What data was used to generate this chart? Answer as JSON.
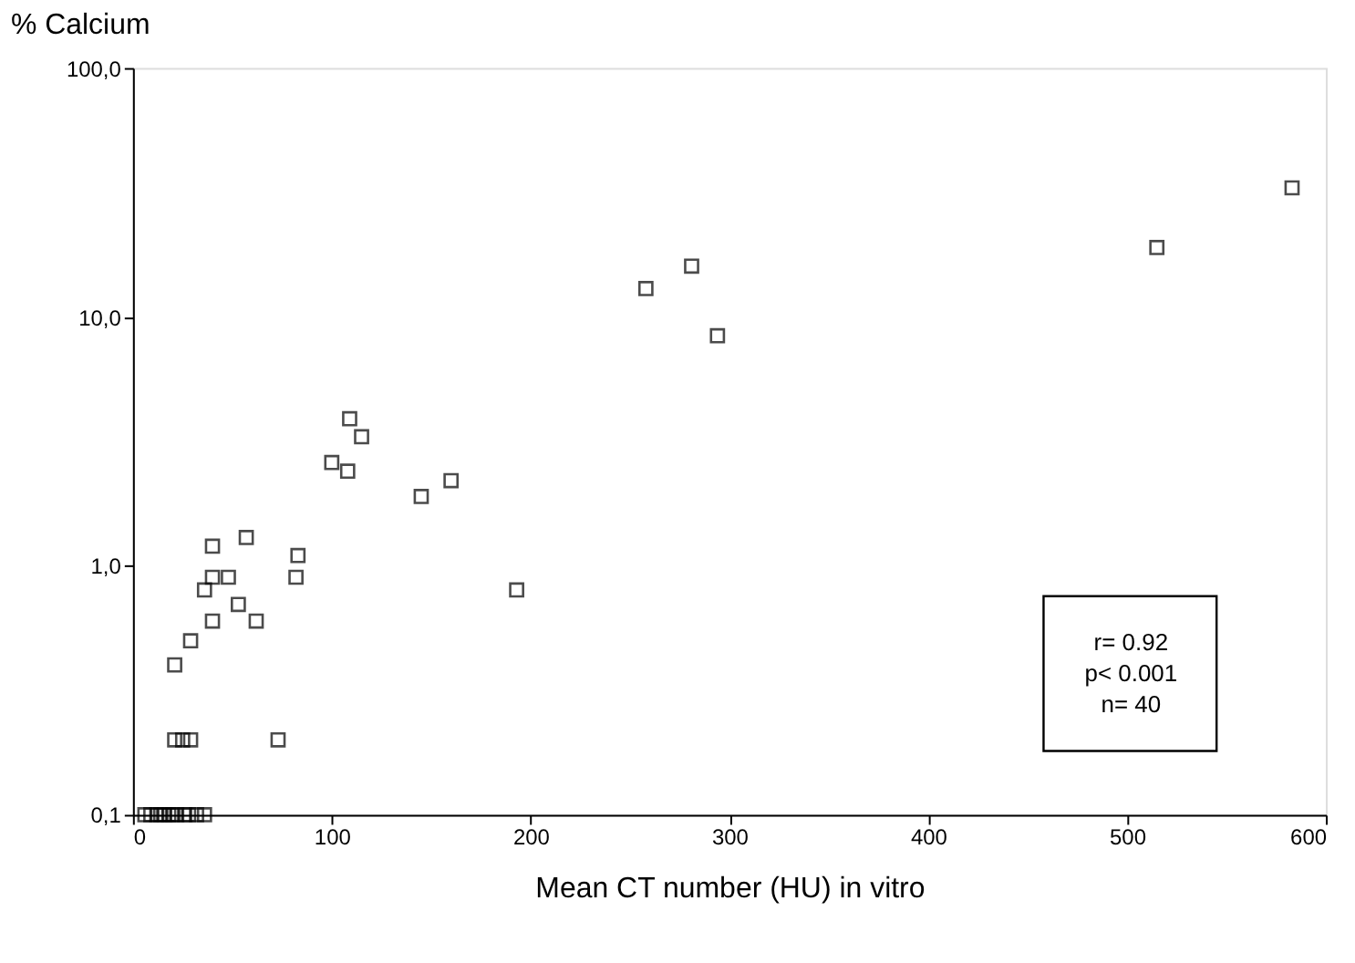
{
  "chart_data": {
    "type": "scatter",
    "xlabel": "Mean CT number (HU) in vitro",
    "ylabel": "% Calcium",
    "x": [
      6,
      9,
      12,
      14,
      16,
      18,
      20,
      22,
      26,
      28,
      32,
      36,
      21,
      25,
      29,
      21,
      29,
      36,
      40,
      40,
      48,
      40,
      53,
      57,
      62,
      73,
      82,
      83,
      100,
      108,
      109,
      115,
      145,
      160,
      193,
      258,
      281,
      294,
      515,
      583
    ],
    "values": [
      0.1,
      0.1,
      0.1,
      0.1,
      0.1,
      0.1,
      0.1,
      0.1,
      0.1,
      0.1,
      0.1,
      0.1,
      0.2,
      0.2,
      0.2,
      0.4,
      0.5,
      0.8,
      1.2,
      0.9,
      0.9,
      0.6,
      0.7,
      1.3,
      0.6,
      0.2,
      0.9,
      1.1,
      2.6,
      2.4,
      3.9,
      3.3,
      1.9,
      2.2,
      0.8,
      13,
      16,
      8.4,
      19,
      33
    ],
    "color": "#000000",
    "marker": "square",
    "xlim": [
      0,
      600
    ],
    "xticks": [
      0,
      100,
      200,
      300,
      400,
      500,
      600
    ],
    "ylim": [
      0.1,
      100
    ],
    "yticks": [
      {
        "value": 0.1,
        "label": "0,1"
      },
      {
        "value": 1,
        "label": "1,0"
      },
      {
        "value": 10,
        "label": "10,0"
      },
      {
        "value": 100,
        "label": "100,0"
      }
    ],
    "log": "y",
    "grid": false,
    "legend": false,
    "annotations": [
      "r= 0.92",
      "p< 0.001",
      "n= 40"
    ]
  }
}
